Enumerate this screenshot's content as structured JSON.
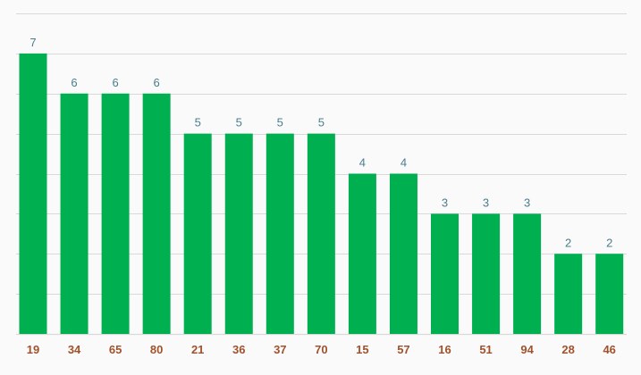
{
  "colors": {
    "bar": "#00b050",
    "grid": "#d9d9d9",
    "value_label": "#4a7d8c",
    "tick_label": "#a0522d",
    "background": "#fafafa"
  },
  "chart_data": {
    "type": "bar",
    "title": "",
    "xlabel": "",
    "ylabel": "",
    "categories": [
      "19",
      "34",
      "65",
      "80",
      "21",
      "36",
      "37",
      "70",
      "15",
      "57",
      "16",
      "51",
      "94",
      "28",
      "46"
    ],
    "values": [
      7,
      6,
      6,
      6,
      5,
      5,
      5,
      5,
      4,
      4,
      3,
      3,
      3,
      2,
      2
    ],
    "ylim": [
      0,
      8
    ],
    "grid": true,
    "legend": "none",
    "data_labels": true
  }
}
